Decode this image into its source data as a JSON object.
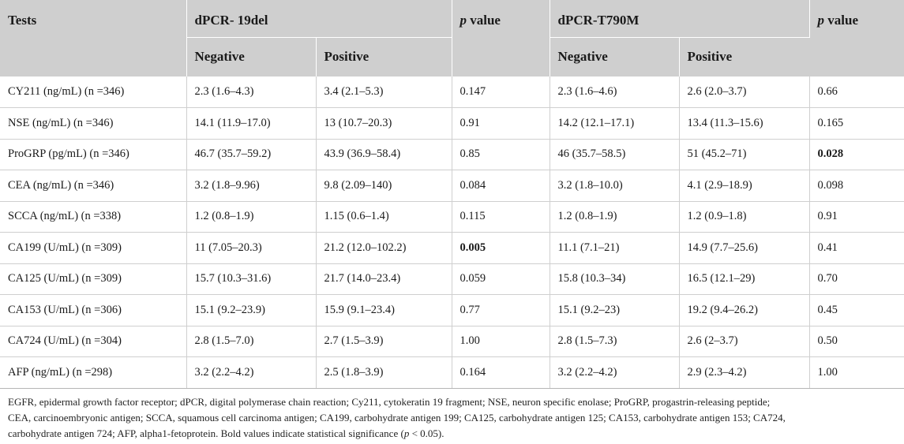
{
  "header": {
    "tests": "Tests",
    "group1": "dPCR- 19del",
    "group2": "dPCR-T790M",
    "p_italic": "p",
    "p_rest": " value",
    "negative": "Negative",
    "positive": "Positive"
  },
  "rows": [
    {
      "test": "CY211 (ng/mL) (n =346)",
      "del_neg": "2.3 (1.6–4.3)",
      "del_pos": "3.4 (2.1–5.3)",
      "del_p": "0.147",
      "del_p_bold": false,
      "t_neg": "2.3 (1.6–4.6)",
      "t_pos": "2.6 (2.0–3.7)",
      "t_p": "0.66",
      "t_p_bold": false
    },
    {
      "test": "NSE (ng/mL) (n =346)",
      "del_neg": "14.1 (11.9–17.0)",
      "del_pos": "13 (10.7–20.3)",
      "del_p": "0.91",
      "del_p_bold": false,
      "t_neg": "14.2 (12.1–17.1)",
      "t_pos": "13.4 (11.3–15.6)",
      "t_p": "0.165",
      "t_p_bold": false
    },
    {
      "test": "ProGRP (pg/mL) (n =346)",
      "del_neg": "46.7 (35.7–59.2)",
      "del_pos": "43.9 (36.9–58.4)",
      "del_p": "0.85",
      "del_p_bold": false,
      "t_neg": "46 (35.7–58.5)",
      "t_pos": "51 (45.2–71)",
      "t_p": "0.028",
      "t_p_bold": true
    },
    {
      "test": "CEA (ng/mL) (n =346)",
      "del_neg": "3.2 (1.8–9.96)",
      "del_pos": "9.8 (2.09–140)",
      "del_p": "0.084",
      "del_p_bold": false,
      "t_neg": "3.2 (1.8–10.0)",
      "t_pos": "4.1 (2.9–18.9)",
      "t_p": "0.098",
      "t_p_bold": false
    },
    {
      "test": "SCCA (ng/mL) (n =338)",
      "del_neg": "1.2 (0.8–1.9)",
      "del_pos": "1.15 (0.6–1.4)",
      "del_p": "0.115",
      "del_p_bold": false,
      "t_neg": "1.2 (0.8–1.9)",
      "t_pos": "1.2 (0.9–1.8)",
      "t_p": "0.91",
      "t_p_bold": false
    },
    {
      "test": "CA199 (U/mL) (n =309)",
      "del_neg": "11 (7.05–20.3)",
      "del_pos": "21.2 (12.0–102.2)",
      "del_p": "0.005",
      "del_p_bold": true,
      "t_neg": "11.1 (7.1–21)",
      "t_pos": "14.9 (7.7–25.6)",
      "t_p": "0.41",
      "t_p_bold": false
    },
    {
      "test": "CA125 (U/mL) (n =309)",
      "del_neg": "15.7 (10.3–31.6)",
      "del_pos": "21.7 (14.0–23.4)",
      "del_p": "0.059",
      "del_p_bold": false,
      "t_neg": "15.8 (10.3–34)",
      "t_pos": "16.5 (12.1–29)",
      "t_p": "0.70",
      "t_p_bold": false
    },
    {
      "test": "CA153 (U/mL) (n =306)",
      "del_neg": "15.1 (9.2–23.9)",
      "del_pos": "15.9 (9.1–23.4)",
      "del_p": "0.77",
      "del_p_bold": false,
      "t_neg": "15.1 (9.2–23)",
      "t_pos": "19.2 (9.4–26.2)",
      "t_p": "0.45",
      "t_p_bold": false
    },
    {
      "test": "CA724 (U/mL) (n =304)",
      "del_neg": "2.8 (1.5–7.0)",
      "del_pos": "2.7 (1.5–3.9)",
      "del_p": "1.00",
      "del_p_bold": false,
      "t_neg": "2.8 (1.5–7.3)",
      "t_pos": "2.6 (2–3.7)",
      "t_p": "0.50",
      "t_p_bold": false
    },
    {
      "test": "AFP (ng/mL) (n =298)",
      "del_neg": "3.2 (2.2–4.2)",
      "del_pos": "2.5 (1.8–3.9)",
      "del_p": "0.164",
      "del_p_bold": false,
      "t_neg": "3.2 (2.2–4.2)",
      "t_pos": "2.9 (2.3–4.2)",
      "t_p": "1.00",
      "t_p_bold": false
    }
  ],
  "notes": {
    "line1": "EGFR, epidermal growth factor receptor; dPCR, digital polymerase chain reaction; Cy211, cytokeratin 19 fragment; NSE, neuron specific enolase; ProGRP, progastrin-releasing peptide;",
    "line2": "CEA, carcinoembryonic antigen; SCCA, squamous cell carcinoma antigen; CA199, carbohydrate antigen 199; CA125, carbohydrate antigen 125; CA153, carbohydrate antigen 153; CA724,",
    "line3_a": "carbohydrate antigen 724; AFP, alpha1-fetoprotein. Bold values indicate statistical significance (",
    "line3_p": "p",
    "line3_b": " < 0.05)."
  }
}
